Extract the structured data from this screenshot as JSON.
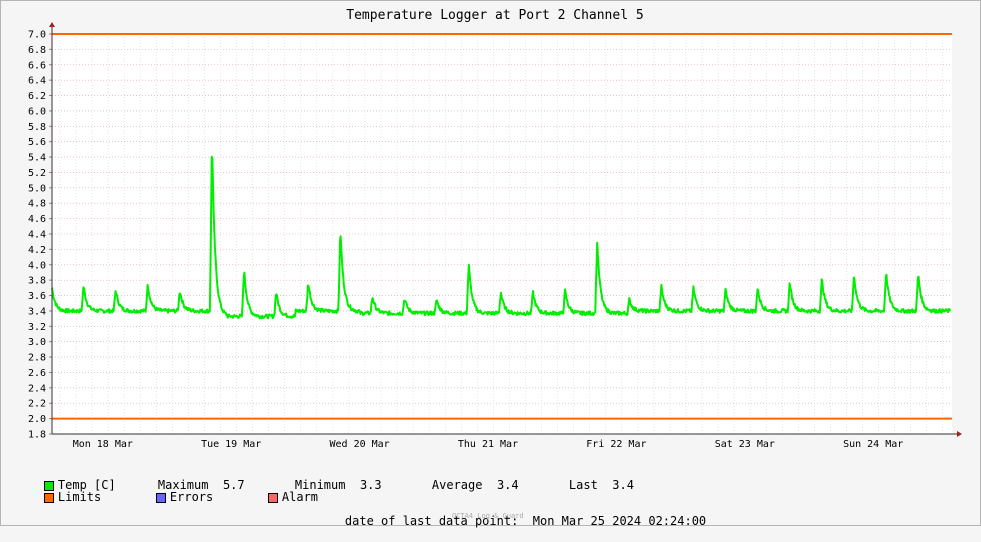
{
  "chart_data": {
    "type": "line",
    "title": "Temperature Logger at Port 2 Channel 5",
    "ylim": [
      1.8,
      7.0
    ],
    "yticks": [
      "7.0",
      "6.8",
      "6.6",
      "6.4",
      "6.2",
      "6.0",
      "5.8",
      "5.6",
      "5.4",
      "5.2",
      "5.0",
      "4.8",
      "4.6",
      "4.4",
      "4.2",
      "4.0",
      "3.8",
      "3.6",
      "3.4",
      "3.2",
      "3.0",
      "2.8",
      "2.6",
      "2.4",
      "2.2",
      "2.0",
      "1.8"
    ],
    "x_labels": [
      "Mon 18 Mar",
      "Tue 19 Mar",
      "Wed 20 Mar",
      "Thu 21 Mar",
      "Fri 22 Mar",
      "Sat 23 Mar",
      "Sun 24 Mar"
    ],
    "x_range_days": [
      "Sun 17 Mar 2024 16:00",
      "Mon Mar 25 2024 02:24:00"
    ],
    "limits": {
      "upper": 7.0,
      "lower": 2.0,
      "color": "#ff6600"
    },
    "baseline": 3.4,
    "series": [
      {
        "name": "Temp [C]",
        "color": "#00ee00",
        "note_peaks": "daily spikes",
        "peaks": [
          {
            "t": 0.1,
            "v": 3.76
          },
          {
            "t": 0.35,
            "v": 3.73
          },
          {
            "t": 0.6,
            "v": 3.68
          },
          {
            "t": 0.85,
            "v": 3.75
          },
          {
            "t": 1.1,
            "v": 3.67
          },
          {
            "t": 1.35,
            "v": 5.67
          },
          {
            "t": 1.6,
            "v": 4.02
          },
          {
            "t": 1.85,
            "v": 3.73
          },
          {
            "t": 2.1,
            "v": 3.78
          },
          {
            "t": 2.35,
            "v": 4.48
          },
          {
            "t": 2.6,
            "v": 3.62
          },
          {
            "t": 2.85,
            "v": 3.6
          },
          {
            "t": 3.1,
            "v": 3.58
          },
          {
            "t": 3.35,
            "v": 4.05
          },
          {
            "t": 3.6,
            "v": 3.68
          },
          {
            "t": 3.85,
            "v": 3.68
          },
          {
            "t": 4.1,
            "v": 3.7
          },
          {
            "t": 4.35,
            "v": 4.33
          },
          {
            "t": 4.6,
            "v": 3.55
          },
          {
            "t": 4.85,
            "v": 3.72
          },
          {
            "t": 5.1,
            "v": 3.7
          },
          {
            "t": 5.35,
            "v": 3.68
          },
          {
            "t": 5.6,
            "v": 3.7
          },
          {
            "t": 5.85,
            "v": 3.77
          },
          {
            "t": 6.1,
            "v": 3.82
          },
          {
            "t": 6.35,
            "v": 3.88
          },
          {
            "t": 6.6,
            "v": 3.92
          },
          {
            "t": 6.85,
            "v": 3.89
          }
        ]
      }
    ]
  },
  "legend": {
    "temp_label": "Temp [C]",
    "maximum_label": "Maximum",
    "maximum_value": "5.7",
    "minimum_label": "Minimum",
    "minimum_value": "3.3",
    "average_label": "Average",
    "average_value": "3.4",
    "last_label": "Last",
    "last_value": "3.4",
    "limits_label": "Limits",
    "errors_label": "Errors",
    "alarm_label": "Alarm",
    "date_label": "date of last data point:",
    "date_value": "Mon Mar 25 2024 02:24:00",
    "watermark": "OCTA4 Log & Guard"
  },
  "colors": {
    "temp": "#00ee00",
    "limits": "#ff6600",
    "errors": "#6666ff",
    "alarm": "#ff6666"
  }
}
